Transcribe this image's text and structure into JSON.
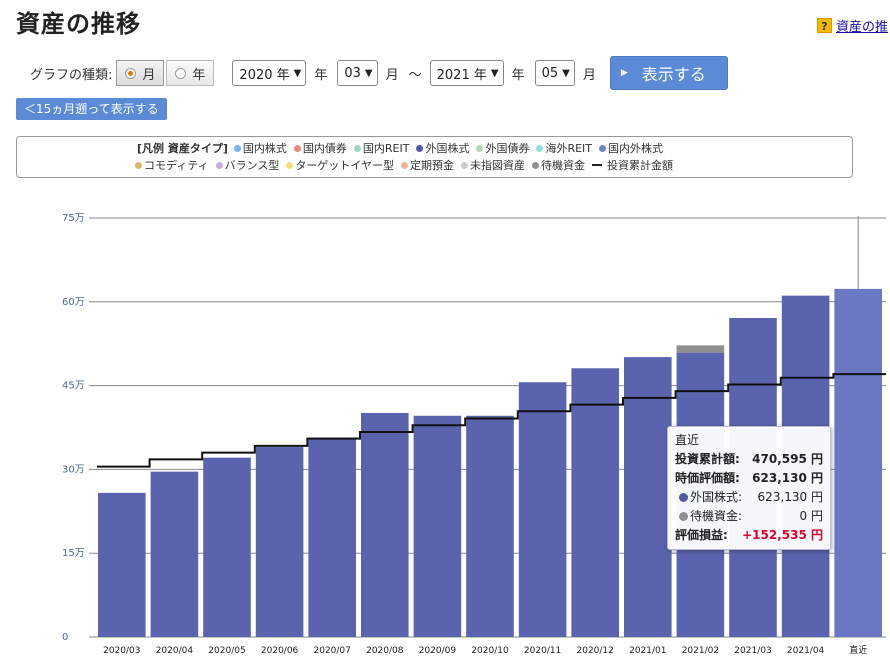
{
  "page": {
    "title": "資産の推移",
    "help_icon": "?",
    "help_link": "資産の推"
  },
  "controls": {
    "graph_type_label": "グラフの種類:",
    "radio_month": "月",
    "radio_year": "年",
    "selected": "月",
    "start_year": "2020 年",
    "year_unit_1": "年",
    "start_month": "03",
    "month_unit_1": "月",
    "range_sep": "～",
    "end_year": "2021 年",
    "year_unit_2": "年",
    "end_month": "05",
    "month_unit_2": "月",
    "submit_label": "表示する",
    "back_label": "＜15ヵ月遡って表示する"
  },
  "legend": {
    "title": "[凡例 資産タイプ]",
    "row1": [
      {
        "label": "国内株式",
        "color": "#7ab6ee"
      },
      {
        "label": "国内債券",
        "color": "#f0837a"
      },
      {
        "label": "国内REIT",
        "color": "#9ed6c3"
      },
      {
        "label": "外国株式",
        "color": "#5158a8"
      },
      {
        "label": "外国債券",
        "color": "#b2d7b0"
      },
      {
        "label": "海外REIT",
        "color": "#8fe0e4"
      },
      {
        "label": "国内外株式",
        "color": "#6f86cf"
      }
    ],
    "row2": [
      {
        "label": "コモディティ",
        "color": "#d8b86a"
      },
      {
        "label": "バランス型",
        "color": "#c6aee0"
      },
      {
        "label": "ターゲットイヤー型",
        "color": "#f3e07a"
      },
      {
        "label": "定期預金",
        "color": "#f2b39a"
      },
      {
        "label": "未指図資産",
        "color": "#c9ccc9"
      },
      {
        "label": "待機資金",
        "color": "#8f8f8f"
      }
    ],
    "line_label": "投資累計金額"
  },
  "chart_data": {
    "type": "bar",
    "categories": [
      "2020/03",
      "2020/04",
      "2020/05",
      "2020/06",
      "2020/07",
      "2020/08",
      "2020/09",
      "2020/10",
      "2020/11",
      "2020/12",
      "2021/01",
      "2021/02",
      "2021/03",
      "2021/04",
      "直近"
    ],
    "y_ticks": [
      0,
      150000,
      300000,
      450000,
      600000,
      750000
    ],
    "y_tick_labels": [
      "0",
      "15万",
      "30万",
      "45万",
      "60万",
      "75万"
    ],
    "ylim": [
      0,
      750000
    ],
    "grid": true,
    "stack_series": [
      {
        "name": "外国株式",
        "color": "#5a63ad",
        "values": [
          258000,
          296000,
          321000,
          340000,
          357000,
          401000,
          396000,
          396000,
          456000,
          481000,
          501000,
          509000,
          571000,
          611000,
          623130
        ]
      },
      {
        "name": "待機資金",
        "color": "#8f8f8f",
        "values": [
          0,
          0,
          0,
          0,
          0,
          0,
          0,
          0,
          0,
          0,
          0,
          13000,
          0,
          0,
          0
        ]
      }
    ],
    "highlight": {
      "index": 14,
      "color": "#6a78c4"
    },
    "line_series": {
      "name": "投資累計金額",
      "color": "#111111",
      "values": [
        305000,
        318000,
        330000,
        342000,
        355000,
        367000,
        379000,
        391000,
        404000,
        416000,
        428000,
        440000,
        452000,
        464000,
        470595
      ]
    },
    "tooltip": {
      "title": "直近",
      "rows": [
        {
          "label": "投資累計額:",
          "value": "470,595 円",
          "bold": true
        },
        {
          "label": "時価評価額:",
          "value": "623,130 円",
          "bold": true
        },
        {
          "label": "外国株式:",
          "value": "623,130 円",
          "dot": "#4f5aa3"
        },
        {
          "label": "待機資金:",
          "value": "0 円",
          "dot": "#8f8f8f"
        },
        {
          "label": "評価損益:",
          "value": "+152,535 円",
          "bold": true,
          "red": true
        }
      ]
    }
  }
}
